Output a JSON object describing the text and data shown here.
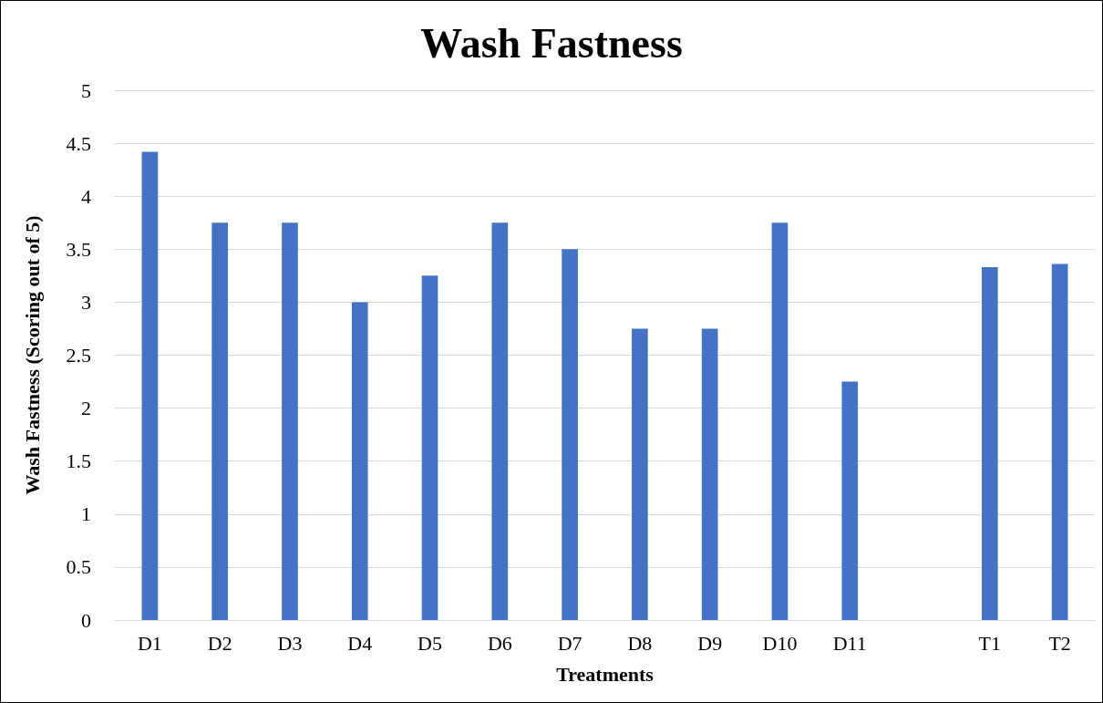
{
  "chart_data": {
    "type": "bar",
    "title": "Wash Fastness",
    "xlabel": "Treatments",
    "ylabel": "Wash Fastness (Scoring out of 5)",
    "categories": [
      "D1",
      "D2",
      "D3",
      "D4",
      "D5",
      "D6",
      "D7",
      "D8",
      "D9",
      "D10",
      "D11",
      null,
      "T1",
      "T2"
    ],
    "values": [
      4.42,
      3.75,
      3.75,
      3.0,
      3.25,
      3.75,
      3.5,
      2.75,
      2.75,
      3.75,
      2.25,
      null,
      3.33,
      3.36
    ],
    "color": "#4472c4",
    "ylim": [
      0,
      5
    ],
    "yticks": [
      0,
      0.5,
      1,
      1.5,
      2,
      2.5,
      3,
      3.5,
      4,
      4.5,
      5
    ],
    "grid": "y"
  }
}
